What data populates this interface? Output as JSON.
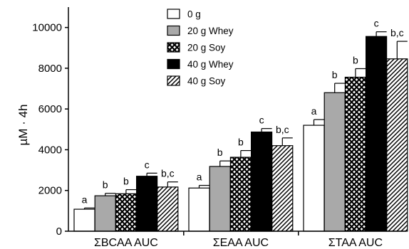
{
  "chart_data": {
    "type": "bar",
    "ylabel": "µM · 4h",
    "ylim": [
      0,
      11000
    ],
    "yticks": [
      0,
      2000,
      4000,
      6000,
      8000,
      10000
    ],
    "ytick_labels": [
      "0",
      "2000",
      "4000",
      "6000",
      "8000",
      "10000"
    ],
    "categories": [
      "ΣBCAA AUC",
      "ΣEAA AUC",
      "ΣTAA AUC"
    ],
    "legend_position": "top-center",
    "grid": false,
    "series": [
      {
        "name": "0 g",
        "fill": "white",
        "color": "#ffffff",
        "values": [
          1080,
          2120,
          5200
        ],
        "errors": [
          60,
          130,
          280
        ],
        "labels": [
          "a",
          "a",
          "a"
        ]
      },
      {
        "name": "20 g Whey",
        "fill": "gray",
        "color": "#a9a9a9",
        "values": [
          1740,
          3180,
          6800
        ],
        "errors": [
          120,
          270,
          460
        ],
        "labels": [
          "b",
          "b",
          "b"
        ]
      },
      {
        "name": "20 g Soy",
        "fill": "crosshatch",
        "color": "#000000",
        "values": [
          1840,
          3630,
          7560
        ],
        "errors": [
          200,
          330,
          420
        ],
        "labels": [
          "b",
          "b",
          "b"
        ]
      },
      {
        "name": "40 g Whey",
        "fill": "black",
        "color": "#000000",
        "values": [
          2700,
          4870,
          9560
        ],
        "errors": [
          150,
          170,
          230
        ],
        "labels": [
          "c",
          "c",
          "c"
        ]
      },
      {
        "name": "40 g Soy",
        "fill": "diagonal",
        "color": "#000000",
        "values": [
          2170,
          4200,
          8460
        ],
        "errors": [
          250,
          380,
          860
        ],
        "labels": [
          "b,c",
          "b,c",
          "b,c"
        ]
      }
    ]
  }
}
